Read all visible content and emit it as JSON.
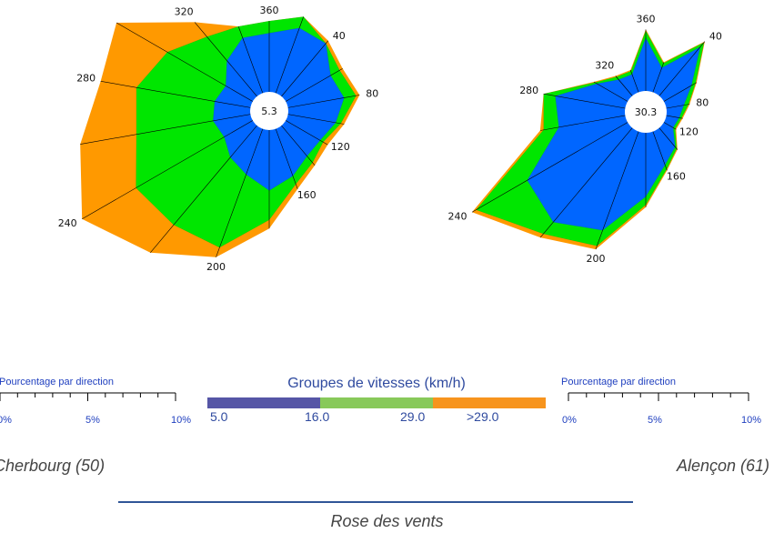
{
  "chart_data": [
    {
      "type": "radar",
      "station": "Cherbourg (50)",
      "calm_pct": "5.3",
      "directions": [
        0,
        20,
        40,
        60,
        80,
        100,
        120,
        140,
        160,
        180,
        200,
        220,
        240,
        260,
        280,
        300,
        320,
        340
      ],
      "direction_labels": [
        "360",
        "40",
        "80",
        "120",
        "160",
        "200",
        "240",
        "280",
        "320"
      ],
      "speed_groups": [
        "5.0",
        "16.0",
        "29.0",
        ">29.0"
      ],
      "series": [
        {
          "name": ">29.0",
          "color": "#ff9900",
          "cumulative_pct": [
            4.1,
            4.7,
            4.2,
            3.8,
            4.2,
            3.3,
            2.8,
            3.0,
            3.7,
            5.7,
            7.9,
            9.6,
            11.4,
            10.0,
            8.8,
            9.1,
            5.6,
            4.1
          ]
        },
        {
          "name": "29.0",
          "color": "#00e600",
          "cumulative_pct": [
            4.1,
            4.7,
            4.0,
            3.6,
            4.0,
            3.1,
            2.5,
            2.8,
            3.4,
            5.2,
            7.3,
            7.5,
            7.8,
            6.7,
            6.7,
            5.7,
            4.5,
            4.1
          ]
        },
        {
          "name": "16.0",
          "color": "#0066ff",
          "cumulative_pct": [
            3.4,
            4.0,
            4.0,
            3.0,
            3.3,
            2.8,
            2.3,
            2.3,
            2.9,
            3.5,
            2.8,
            2.4,
            1.9,
            2.2,
            2.1,
            1.8,
            2.7,
            3.4
          ]
        }
      ]
    },
    {
      "type": "radar",
      "station": "Alençon (61)",
      "calm_pct": "30.3",
      "directions": [
        0,
        20,
        40,
        60,
        80,
        100,
        120,
        140,
        160,
        180,
        200,
        220,
        240,
        260,
        280,
        300,
        320,
        340
      ],
      "direction_labels": [
        "360",
        "40",
        "80",
        "120",
        "160",
        "200",
        "240",
        "280",
        "320"
      ],
      "speed_groups": [
        "5.0",
        "16.0",
        "29.0",
        ">29.0"
      ],
      "series": [
        {
          "name": ">29.0",
          "color": "#ff9900",
          "cumulative_pct": [
            5.2,
            2.7,
            6.0,
            3.2,
            2.0,
            1.4,
            1.2,
            2.4,
            3.5,
            6.3,
            10.6,
            12.1,
            15.2,
            7.3,
            7.0,
            3.3,
            2.2,
            2.0
          ]
        },
        {
          "name": "29.0",
          "color": "#00e600",
          "cumulative_pct": [
            5.1,
            2.6,
            5.9,
            3.1,
            1.9,
            1.3,
            1.1,
            2.3,
            3.4,
            6.1,
            10.3,
            11.7,
            14.8,
            7.0,
            7.0,
            3.2,
            2.1,
            1.9
          ]
        },
        {
          "name": "16.0",
          "color": "#0066ff",
          "cumulative_pct": [
            4.5,
            2.2,
            5.4,
            2.7,
            1.5,
            1.1,
            0.9,
            2.1,
            3.0,
            5.4,
            8.9,
            10.4,
            9.8,
            5.7,
            6.0,
            3.0,
            1.8,
            1.6
          ]
        }
      ]
    }
  ],
  "scale": {
    "title": "Pourcentage par direction",
    "ticks": [
      "0%",
      "5%",
      "10%"
    ],
    "right_last_tick": "10%"
  },
  "legend": {
    "title": "Groupes de vitesses (km/h)",
    "labels": [
      "5.0",
      "16.0",
      "29.0",
      ">29.0"
    ],
    "colors": [
      "#5656a6",
      "#88c95a",
      "#f7941d"
    ]
  },
  "stations": {
    "left": "Cherbourg (50)",
    "right": "Alençon (61)"
  },
  "footer": {
    "title": "Rose des vents"
  }
}
